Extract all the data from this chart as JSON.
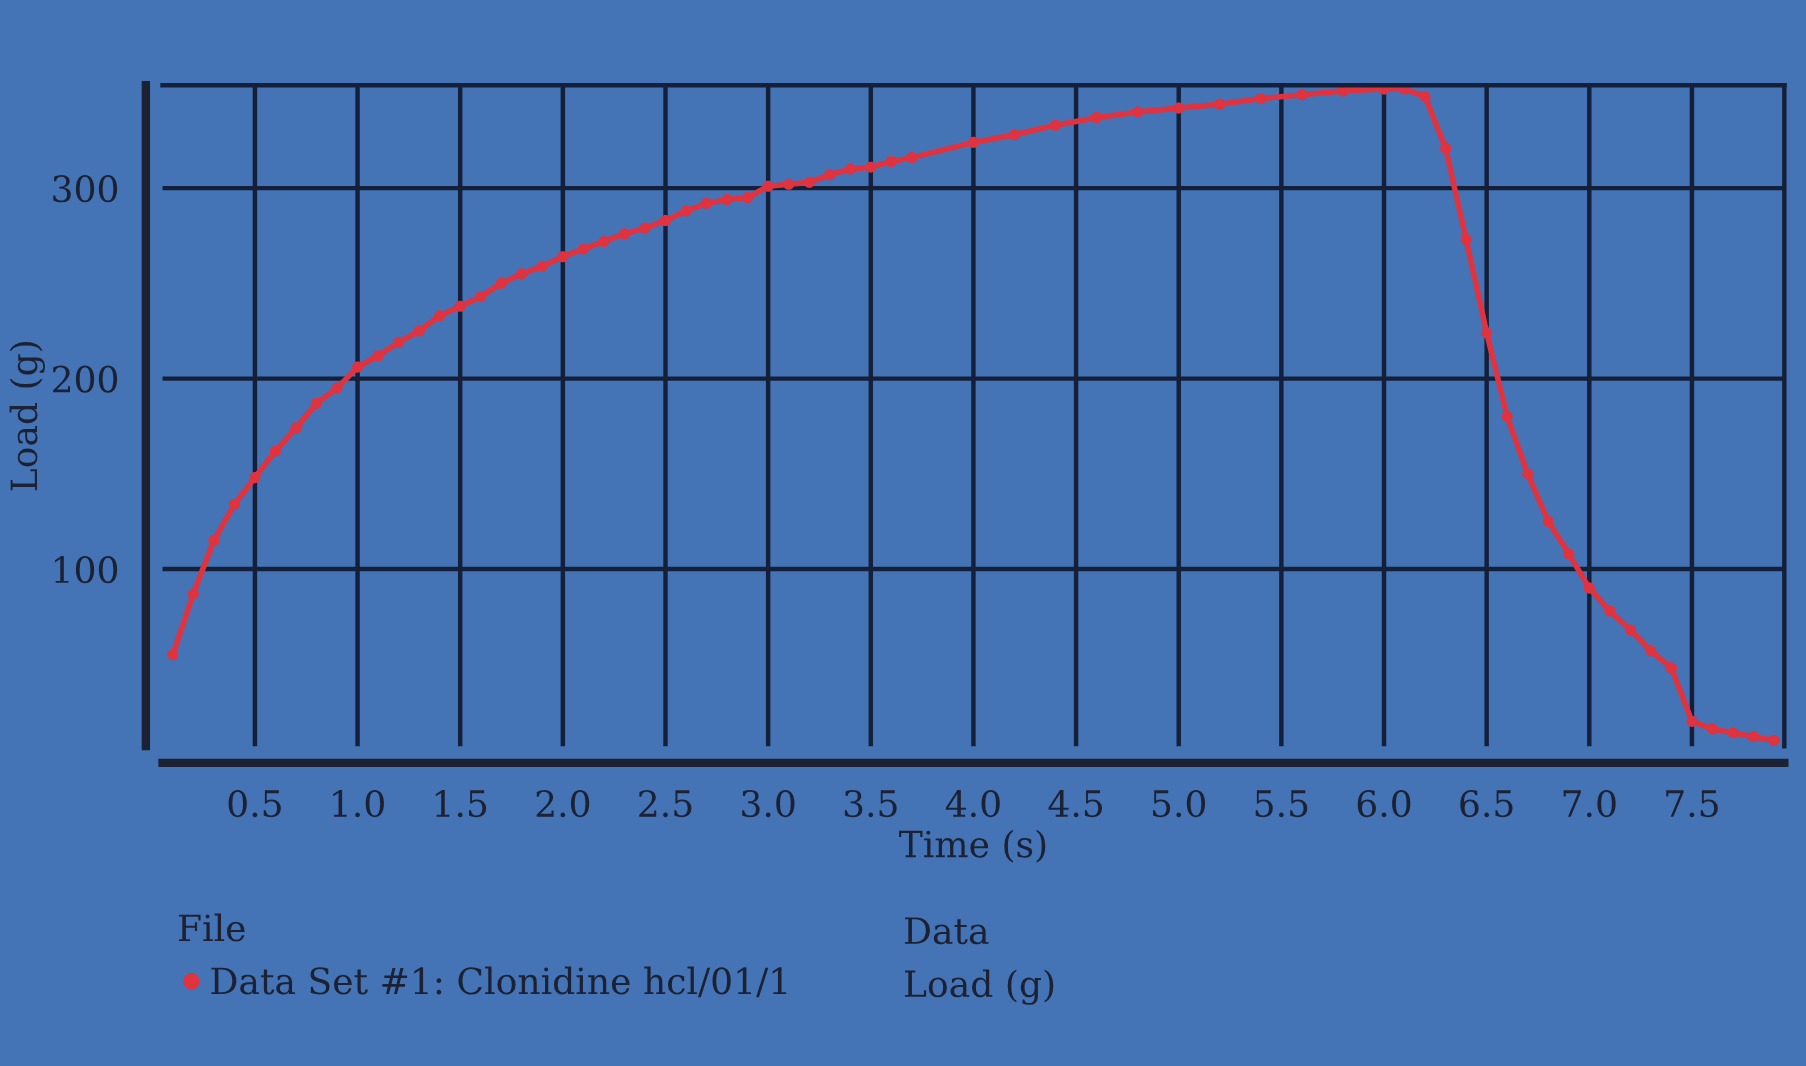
{
  "chart_data": {
    "type": "line",
    "xlabel": "Time (s)",
    "ylabel": "Load (g)",
    "legend_title": "File",
    "annotations": [
      "Data",
      "Load (g)"
    ],
    "xlim": [
      0.05,
      7.95
    ],
    "xticks": [
      0.5,
      {
        "value": 1,
        "label": "1.0"
      },
      1.5,
      {
        "value": 2,
        "label": "2.0"
      },
      2.5,
      {
        "value": 3,
        "label": "3.0"
      },
      3.5,
      {
        "value": 4,
        "label": "4.0"
      },
      4.5,
      {
        "value": 5,
        "label": "5.0"
      },
      5.5,
      {
        "value": 6,
        "label": "6.0"
      },
      6.5,
      {
        "value": 7,
        "label": "7.0"
      },
      7.5
    ],
    "ylim": [
      7,
      354
    ],
    "yticks": [
      100,
      200,
      300
    ],
    "grid": true,
    "legend": "bottom",
    "marker": "circle",
    "line_style": "solid",
    "x": [
      0.1,
      0.2,
      0.3,
      0.4,
      0.5,
      0.6,
      0.7,
      0.8,
      0.9,
      1.0,
      1.1,
      1.2,
      1.3,
      1.4,
      1.5,
      1.6,
      1.7,
      1.8,
      1.9,
      2.0,
      2.1,
      2.2,
      2.3,
      2.4,
      2.5,
      2.6,
      2.7,
      2.8,
      2.9,
      3.0,
      3.1,
      3.2,
      3.3,
      3.4,
      3.5,
      3.6,
      3.7,
      4.0,
      4.2,
      4.4,
      4.6,
      4.8,
      5.0,
      5.2,
      5.4,
      5.6,
      5.8,
      6.0,
      6.1,
      6.2,
      6.3,
      6.4,
      6.5,
      6.6,
      6.7,
      6.8,
      6.9,
      7.0,
      7.1,
      7.2,
      7.3,
      7.4,
      7.5,
      7.6,
      7.7,
      7.8,
      7.9
    ],
    "series": [
      {
        "name": "Data Set #1: Clonidine hcl/01/1",
        "color": "#e03340",
        "values": [
          55,
          87,
          115,
          134,
          148,
          162,
          174,
          187,
          195,
          206,
          212,
          219,
          225,
          233,
          238,
          243,
          250,
          255,
          259,
          264,
          268,
          272,
          276,
          279,
          283,
          288,
          292,
          294,
          295,
          301,
          302,
          303,
          307,
          310,
          311,
          314,
          316,
          324,
          328,
          333,
          337,
          340,
          342,
          344,
          347,
          349,
          351,
          352,
          352,
          348,
          321,
          273,
          224,
          180,
          150,
          125,
          108,
          90,
          78,
          68,
          57,
          48,
          20,
          16,
          14,
          12,
          10
        ]
      }
    ]
  }
}
